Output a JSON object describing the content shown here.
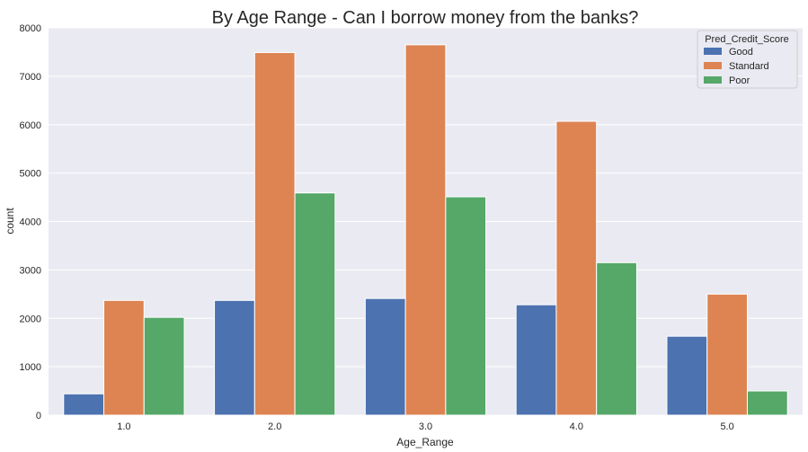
{
  "chart_data": {
    "type": "bar",
    "title": "By Age Range - Can I borrow money from the banks?",
    "xlabel": "Age_Range",
    "ylabel": "count",
    "categories": [
      "1.0",
      "2.0",
      "3.0",
      "4.0",
      "5.0"
    ],
    "series": [
      {
        "name": "Good",
        "color": "#4c72b0",
        "values": [
          440,
          2370,
          2410,
          2280,
          1630
        ]
      },
      {
        "name": "Standard",
        "color": "#dd8452",
        "values": [
          2370,
          7490,
          7650,
          6070,
          2500
        ]
      },
      {
        "name": "Poor",
        "color": "#55a868",
        "values": [
          2020,
          4590,
          4510,
          3150,
          500
        ]
      }
    ],
    "ylim": [
      0,
      8000
    ],
    "yticks": [
      "0",
      "1000",
      "2000",
      "3000",
      "4000",
      "5000",
      "6000",
      "7000",
      "8000"
    ],
    "legend_title": "Pred_Credit_Score",
    "legend_position": "top-right",
    "grid": true,
    "background": "#eaeaf2"
  }
}
